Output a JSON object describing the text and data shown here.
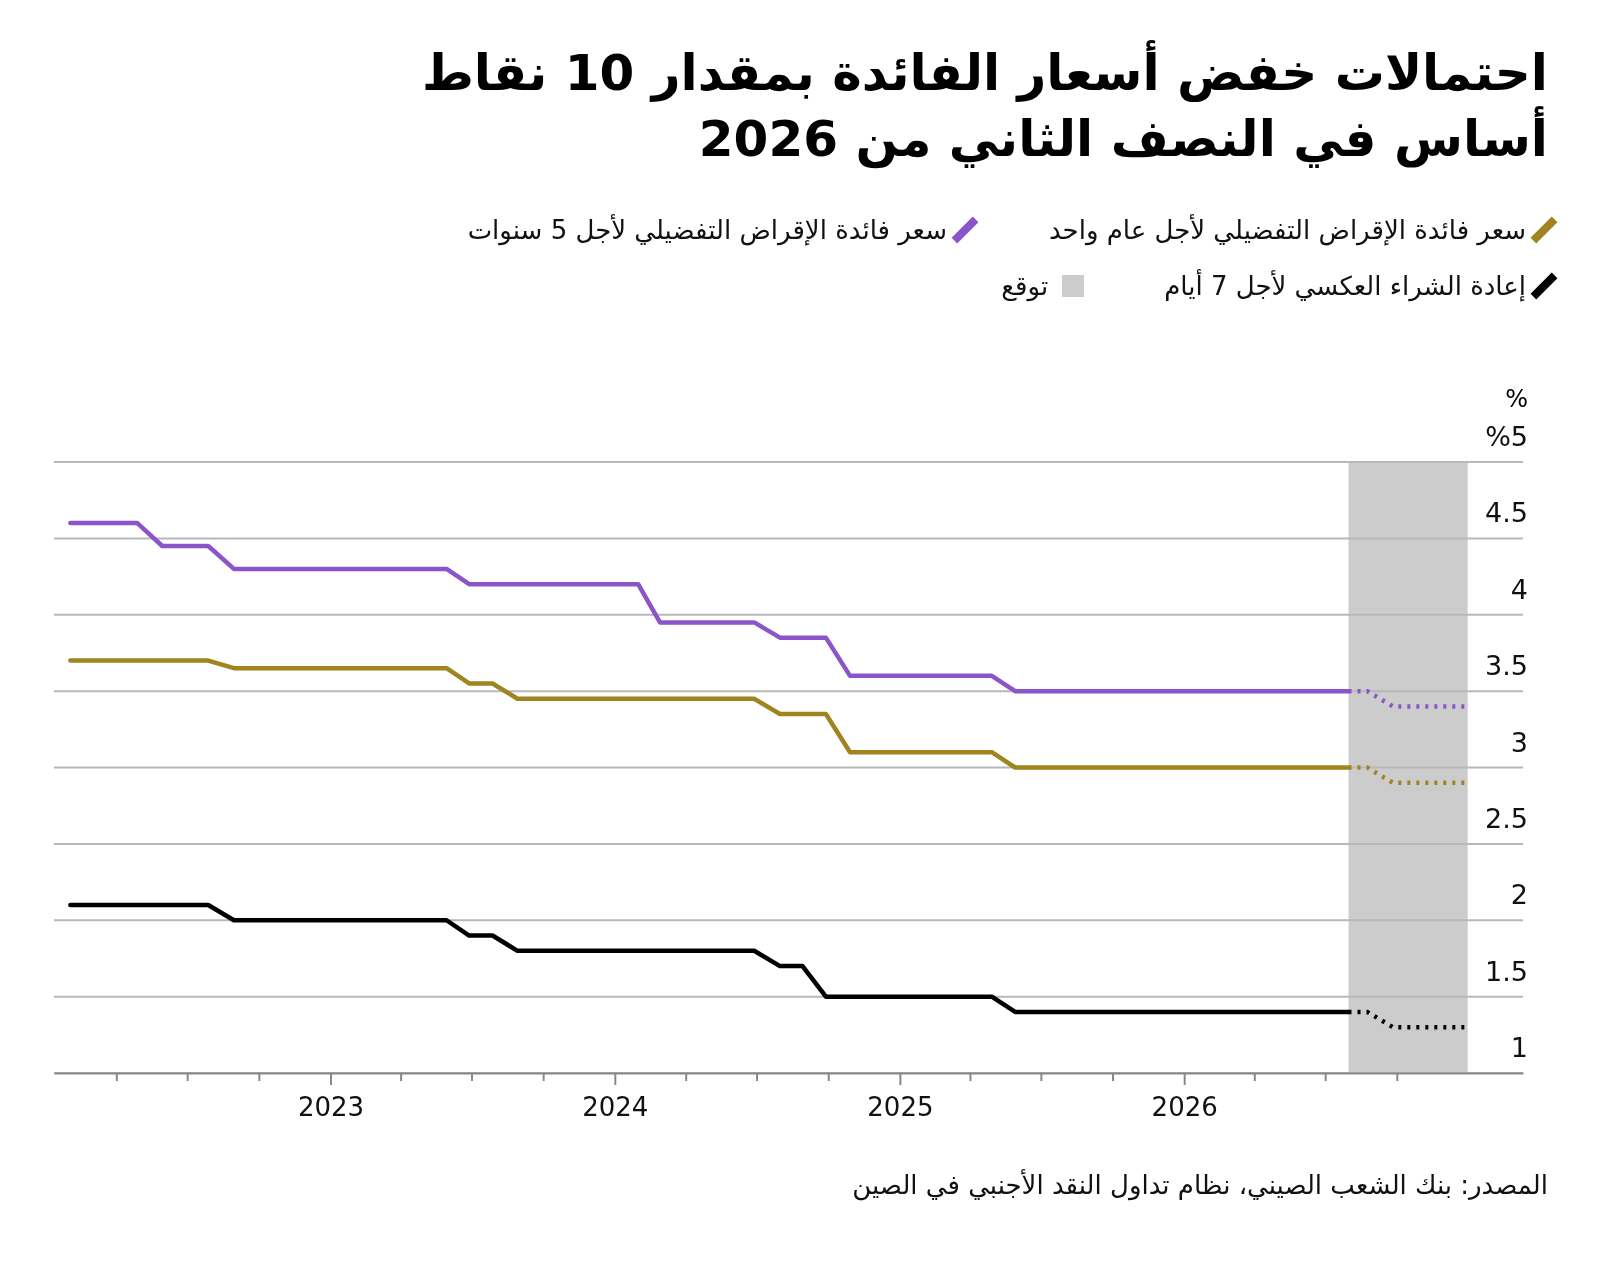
{
  "chart_data": {
    "type": "line",
    "title": "احتمالات خفض أسعار الفائدة بمقدار 10 نقاط أساس في النصف الثاني من 2026",
    "ylabel": "%",
    "xlim": [
      "2022-01-11",
      "2027-03-12"
    ],
    "xticks": [
      {
        "value": "2022-04",
        "label": null
      },
      {
        "value": "2022-07",
        "label": null
      },
      {
        "value": "2022-10",
        "label": null
      },
      {
        "value": "2023",
        "label": "2023"
      },
      {
        "value": "2023-04",
        "label": null
      },
      {
        "value": "2023-07",
        "label": null
      },
      {
        "value": "2023-10",
        "label": null
      },
      {
        "value": "2024",
        "label": "2024"
      },
      {
        "value": "2024-04",
        "label": null
      },
      {
        "value": "2024-07",
        "label": null
      },
      {
        "value": "2024-10",
        "label": null
      },
      {
        "value": "2025",
        "label": "2025"
      },
      {
        "value": "2025-04",
        "label": null
      },
      {
        "value": "2025-07",
        "label": null
      },
      {
        "value": "2025-10",
        "label": null
      },
      {
        "value": "2026",
        "label": "2026"
      },
      {
        "value": "2026-04",
        "label": null
      },
      {
        "value": "2026-07",
        "label": null
      },
      {
        "value": "2026-10",
        "label": null
      }
    ],
    "ylim": [
      1,
      5
    ],
    "yticks": [
      1,
      1.5,
      2,
      2.5,
      3,
      3.5,
      4,
      4.5,
      {
        "value": 5,
        "label": "%5"
      }
    ],
    "grid": "y",
    "legend": "top",
    "series": [
      {
        "name": "سعر فائدة الإقراض التفضيلي لأجل عام واحد",
        "color": "#a08420",
        "line_style": "solid",
        "x": [
          "2022-02-01",
          "2022-07-28",
          "2022-08-30",
          "2023-05-30",
          "2023-06-28",
          "2023-07-28",
          "2023-08-29",
          "2024-06-28",
          "2024-07-31",
          "2024-09-28",
          "2024-10-29",
          "2025-04-29",
          "2025-05-29",
          "2026-07-31"
        ],
        "values": [
          3.7,
          3.7,
          3.65,
          3.65,
          3.55,
          3.55,
          3.45,
          3.45,
          3.35,
          3.35,
          3.1,
          3.1,
          3.0,
          3.0
        ]
      },
      {
        "name": "سعر فائدة الإقراض التفضيلي لأجل 5 سنوات",
        "color": "#8b55c9",
        "line_style": "solid",
        "x": [
          "2022-02-01",
          "2022-04-28",
          "2022-05-30",
          "2022-07-28",
          "2022-08-30",
          "2023-05-30",
          "2023-06-28",
          "2024-01-31",
          "2024-02-28",
          "2024-06-28",
          "2024-07-31",
          "2024-09-28",
          "2024-10-29",
          "2025-04-29",
          "2025-05-29",
          "2026-07-31"
        ],
        "values": [
          4.6,
          4.6,
          4.45,
          4.45,
          4.3,
          4.3,
          4.2,
          4.2,
          3.95,
          3.95,
          3.85,
          3.85,
          3.6,
          3.6,
          3.5,
          3.5
        ]
      },
      {
        "name": "إعادة الشراء العكسي لأجل 7 أيام",
        "color": "#000000",
        "line_style": "solid",
        "x": [
          "2022-02-01",
          "2022-07-28",
          "2022-08-30",
          "2023-05-30",
          "2023-06-28",
          "2023-07-28",
          "2023-08-29",
          "2024-06-28",
          "2024-07-31",
          "2024-08-29",
          "2024-09-28",
          "2025-04-29",
          "2025-05-29",
          "2026-07-31"
        ],
        "values": [
          2.1,
          2.1,
          2.0,
          2.0,
          1.9,
          1.9,
          1.8,
          1.8,
          1.7,
          1.7,
          1.5,
          1.5,
          1.4,
          1.4
        ]
      },
      {
        "color": "#a08420",
        "line_style": "dotted",
        "x": [
          "2026-07-31",
          "2026-08-24",
          "2026-09-26",
          "2026-12-31"
        ],
        "values": [
          3.0,
          3.0,
          2.9,
          2.9
        ]
      },
      {
        "color": "#8b55c9",
        "line_style": "dotted",
        "x": [
          "2026-07-31",
          "2026-08-24",
          "2026-09-26",
          "2026-12-31"
        ],
        "values": [
          3.5,
          3.5,
          3.4,
          3.4
        ]
      },
      {
        "color": "#000000",
        "line_style": "dotted",
        "x": [
          "2026-07-31",
          "2026-08-24",
          "2026-09-26",
          "2026-12-31"
        ],
        "values": [
          1.4,
          1.4,
          1.3,
          1.3
        ]
      }
    ],
    "bands": [
      {
        "axis": "x",
        "from": "2026-07-31",
        "to": "2026-12-31",
        "label": "توقع",
        "color": "#cccccc"
      }
    ],
    "annotations": [
      "المصدر: بنك الشعب الصيني، نظام تداول النقد الأجنبي في الصين"
    ]
  }
}
